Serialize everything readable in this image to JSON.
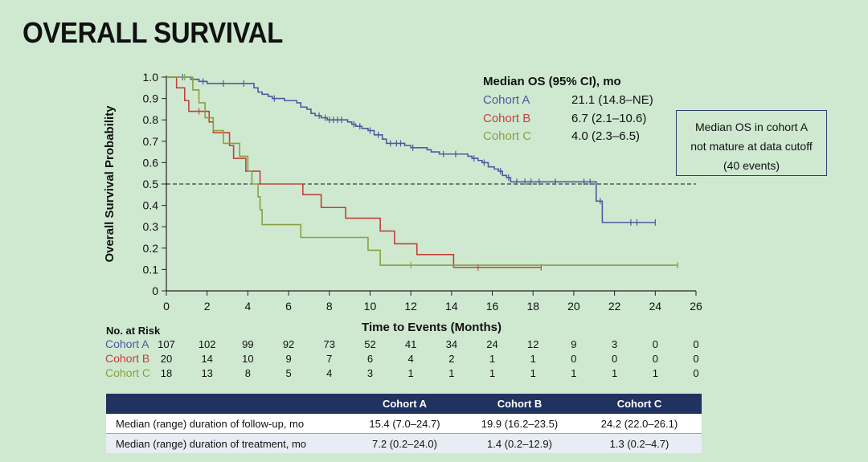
{
  "page": {
    "title": "OVERALL SURVIVAL"
  },
  "colors": {
    "cohort_a": "#4a5b9c",
    "cohort_b": "#c0423a",
    "cohort_c": "#8aa040",
    "table_header": "#1f3260",
    "background": "#cfe9d1"
  },
  "chart_data": {
    "type": "line",
    "subtype": "kaplan-meier",
    "xlabel": "Time to Events (Months)",
    "ylabel": "Overall Survival Probability",
    "xlim": [
      0,
      26
    ],
    "ylim": [
      0,
      1.0
    ],
    "x_ticks": [
      0,
      2,
      4,
      6,
      8,
      10,
      12,
      14,
      16,
      18,
      20,
      22,
      24,
      26
    ],
    "x_tick_labels": [
      "0",
      "2",
      "4",
      "6",
      "8",
      "10",
      "12",
      "14",
      "16",
      "18",
      "20",
      "22",
      "24",
      "26"
    ],
    "y_ticks": [
      0,
      0.1,
      0.2,
      0.3,
      0.4,
      0.5,
      0.6,
      0.7,
      0.8,
      0.9,
      1.0
    ],
    "y_tick_labels": [
      "0",
      "0.1",
      "0.2",
      "0.3",
      "0.4",
      "0.5",
      "0.6",
      "0.7",
      "0.8",
      "0.9",
      "1.0"
    ],
    "reference_line": {
      "y": 0.5,
      "style": "dashed"
    },
    "legend": {
      "title": "Median OS (95% CI), mo",
      "entries": [
        {
          "name": "Cohort A",
          "value": "21.1 (14.8–NE)"
        },
        {
          "name": "Cohort B",
          "value": "6.7 (2.1–10.6)"
        },
        {
          "name": "Cohort C",
          "value": "4.0 (2.3–6.5)"
        }
      ]
    },
    "series": [
      {
        "name": "Cohort A",
        "steps": [
          [
            0,
            1.0
          ],
          [
            1.2,
            0.99
          ],
          [
            1.6,
            0.98
          ],
          [
            2.0,
            0.97
          ],
          [
            4.3,
            0.95
          ],
          [
            4.5,
            0.93
          ],
          [
            4.7,
            0.92
          ],
          [
            5.0,
            0.91
          ],
          [
            5.2,
            0.9
          ],
          [
            5.8,
            0.89
          ],
          [
            6.4,
            0.88
          ],
          [
            6.6,
            0.86
          ],
          [
            6.9,
            0.85
          ],
          [
            7.1,
            0.83
          ],
          [
            7.3,
            0.82
          ],
          [
            7.6,
            0.81
          ],
          [
            7.9,
            0.8
          ],
          [
            8.9,
            0.79
          ],
          [
            9.1,
            0.78
          ],
          [
            9.3,
            0.77
          ],
          [
            9.6,
            0.76
          ],
          [
            9.9,
            0.75
          ],
          [
            10.2,
            0.73
          ],
          [
            10.6,
            0.71
          ],
          [
            10.8,
            0.69
          ],
          [
            11.7,
            0.68
          ],
          [
            12.0,
            0.67
          ],
          [
            12.8,
            0.66
          ],
          [
            13.0,
            0.65
          ],
          [
            13.4,
            0.64
          ],
          [
            14.8,
            0.63
          ],
          [
            15.0,
            0.62
          ],
          [
            15.3,
            0.61
          ],
          [
            15.5,
            0.6
          ],
          [
            15.8,
            0.58
          ],
          [
            16.1,
            0.57
          ],
          [
            16.3,
            0.56
          ],
          [
            16.5,
            0.54
          ],
          [
            16.7,
            0.53
          ],
          [
            16.9,
            0.51
          ],
          [
            21.1,
            0.42
          ],
          [
            21.4,
            0.32
          ]
        ],
        "end_x": 24.0,
        "censor": [
          [
            0.8,
            1.0
          ],
          [
            1.8,
            0.98
          ],
          [
            2.8,
            0.97
          ],
          [
            3.8,
            0.97
          ],
          [
            5.3,
            0.9
          ],
          [
            7.5,
            0.82
          ],
          [
            7.8,
            0.81
          ],
          [
            8.0,
            0.8
          ],
          [
            8.2,
            0.8
          ],
          [
            8.4,
            0.8
          ],
          [
            8.6,
            0.8
          ],
          [
            9.2,
            0.78
          ],
          [
            9.5,
            0.77
          ],
          [
            10.0,
            0.75
          ],
          [
            10.4,
            0.73
          ],
          [
            11.0,
            0.69
          ],
          [
            11.3,
            0.69
          ],
          [
            11.5,
            0.69
          ],
          [
            12.1,
            0.67
          ],
          [
            13.6,
            0.64
          ],
          [
            14.2,
            0.64
          ],
          [
            15.1,
            0.62
          ],
          [
            15.6,
            0.6
          ],
          [
            16.4,
            0.56
          ],
          [
            16.8,
            0.53
          ],
          [
            17.2,
            0.51
          ],
          [
            17.6,
            0.51
          ],
          [
            17.9,
            0.51
          ],
          [
            18.3,
            0.51
          ],
          [
            19.1,
            0.51
          ],
          [
            20.5,
            0.51
          ],
          [
            20.8,
            0.51
          ],
          [
            21.3,
            0.42
          ],
          [
            22.8,
            0.32
          ],
          [
            23.1,
            0.32
          ],
          [
            24.0,
            0.32
          ]
        ],
        "risk": [
          "107",
          "102",
          "99",
          "92",
          "73",
          "52",
          "41",
          "34",
          "24",
          "12",
          "9",
          "3",
          "0",
          "0"
        ]
      },
      {
        "name": "Cohort B",
        "steps": [
          [
            0,
            1.0
          ],
          [
            0.5,
            0.95
          ],
          [
            0.9,
            0.89
          ],
          [
            1.1,
            0.84
          ],
          [
            2.1,
            0.79
          ],
          [
            2.3,
            0.74
          ],
          [
            3.1,
            0.68
          ],
          [
            3.3,
            0.62
          ],
          [
            3.9,
            0.56
          ],
          [
            4.6,
            0.5
          ],
          [
            6.7,
            0.45
          ],
          [
            7.6,
            0.39
          ],
          [
            8.8,
            0.34
          ],
          [
            10.5,
            0.28
          ],
          [
            11.2,
            0.22
          ],
          [
            12.3,
            0.17
          ],
          [
            14.1,
            0.11
          ]
        ],
        "end_x": 18.4,
        "censor": [
          [
            1.6,
            0.84
          ],
          [
            15.3,
            0.11
          ],
          [
            18.4,
            0.11
          ]
        ],
        "risk": [
          "20",
          "14",
          "10",
          "9",
          "7",
          "6",
          "4",
          "2",
          "1",
          "1",
          "0",
          "0",
          "0",
          "0"
        ]
      },
      {
        "name": "Cohort C",
        "steps": [
          [
            0,
            1.0
          ],
          [
            1.3,
            0.94
          ],
          [
            1.6,
            0.88
          ],
          [
            1.9,
            0.81
          ],
          [
            2.3,
            0.75
          ],
          [
            2.8,
            0.69
          ],
          [
            3.6,
            0.63
          ],
          [
            4.0,
            0.56
          ],
          [
            4.2,
            0.5
          ],
          [
            4.5,
            0.44
          ],
          [
            4.6,
            0.38
          ],
          [
            4.7,
            0.31
          ],
          [
            6.6,
            0.25
          ],
          [
            9.9,
            0.19
          ],
          [
            10.5,
            0.12
          ]
        ],
        "end_x": 25.1,
        "censor": [
          [
            0.9,
            1.0
          ],
          [
            12.0,
            0.12
          ],
          [
            25.1,
            0.12
          ]
        ],
        "risk": [
          "18",
          "13",
          "8",
          "5",
          "4",
          "3",
          "1",
          "1",
          "1",
          "1",
          "1",
          "1",
          "1",
          "0"
        ]
      }
    ],
    "risk_table": {
      "title": "No. at Risk",
      "times": [
        0,
        2,
        4,
        6,
        8,
        10,
        12,
        14,
        16,
        18,
        20,
        22,
        24,
        26
      ]
    }
  },
  "note": {
    "line1": "Median OS in cohort A",
    "line2": "not mature at data cutoff",
    "line3": "(40 events)"
  },
  "summary_table": {
    "headers": [
      "",
      "Cohort A",
      "Cohort B",
      "Cohort C"
    ],
    "rows": [
      [
        "Median (range) duration of follow-up, mo",
        "15.4 (7.0–24.7)",
        "19.9 (16.2–23.5)",
        "24.2 (22.0–26.1)"
      ],
      [
        "Median (range) duration of treatment, mo",
        "7.2 (0.2–24.0)",
        "1.4 (0.2–12.9)",
        "1.3 (0.2–4.7)"
      ]
    ]
  }
}
